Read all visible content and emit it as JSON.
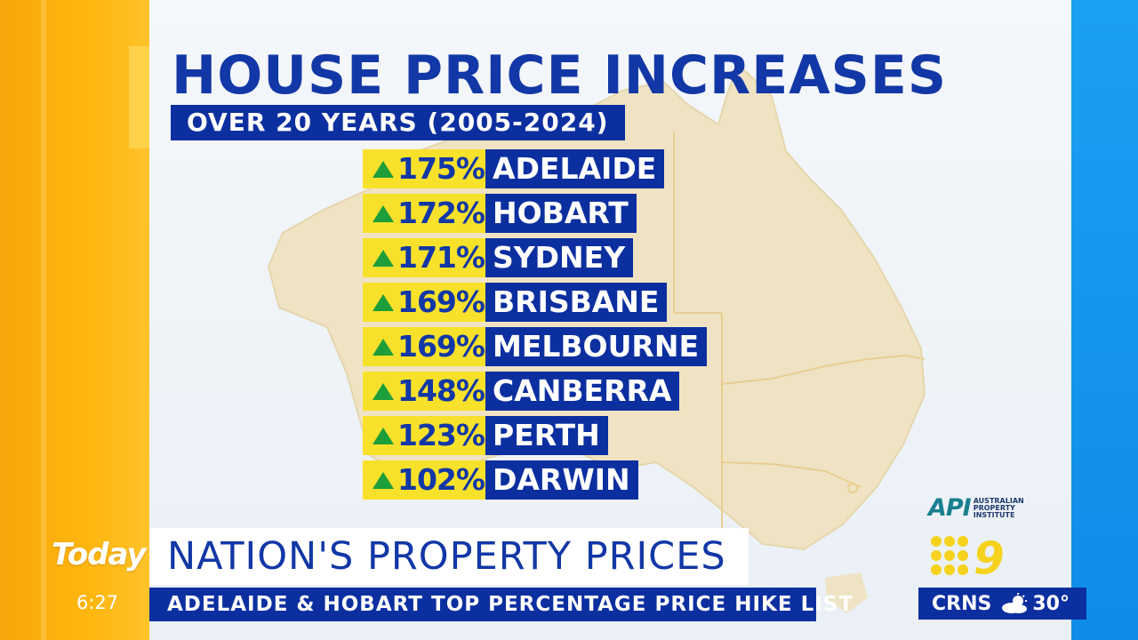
{
  "graphic": {
    "title": "HOUSE PRICE INCREASES",
    "subtitle": "OVER 20 YEARS (2005-2024)",
    "rows": [
      {
        "pct": "175%",
        "city": "ADELAIDE"
      },
      {
        "pct": "172%",
        "city": "HOBART"
      },
      {
        "pct": "171%",
        "city": "SYDNEY"
      },
      {
        "pct": "169%",
        "city": "BRISBANE"
      },
      {
        "pct": "169%",
        "city": "MELBOURNE"
      },
      {
        "pct": "148%",
        "city": "CANBERRA"
      },
      {
        "pct": "123%",
        "city": "PERTH"
      },
      {
        "pct": "102%",
        "city": "DARWIN"
      }
    ],
    "source_logo": {
      "mark": "API",
      "text": "AUSTRALIAN PROPERTY INSTITUTE"
    },
    "icons": {
      "increase": "up-arrow-icon",
      "weather": "partly-cloudy-icon"
    }
  },
  "broadcast": {
    "show_logo": "Today",
    "time": "6:27",
    "headline": "NATION'S PROPERTY PRICES",
    "ticker": "ADELAIDE & HOBART TOP PERCENTAGE PRICE HIKE LIST",
    "network_logo": "9",
    "weather": {
      "city": "CRNS",
      "temp": "30°"
    }
  },
  "colors": {
    "navy": "#0c2fa0",
    "title_blue": "#1237a6",
    "yellow": "#f8e12a",
    "arrow_green": "#1d9e3a",
    "orange": "#ffb60f",
    "sky_blue": "#1aa0f2",
    "map_tan": "#efe3c4"
  }
}
